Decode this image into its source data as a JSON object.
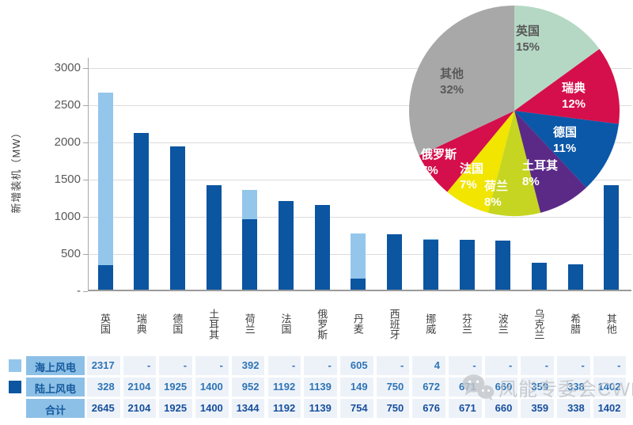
{
  "chart_data": [
    {
      "type": "bar",
      "title": "",
      "ylabel": "新增装机（MW）",
      "ylim": [
        0,
        3000
      ],
      "grid": true,
      "yticks": [
        {
          "label": "3000",
          "value": 3000
        },
        {
          "label": "2500",
          "value": 2500
        },
        {
          "label": "2000",
          "value": 2000
        },
        {
          "label": "1500",
          "value": 1500
        },
        {
          "label": "1000",
          "value": 1000
        },
        {
          "label": "500",
          "value": 500
        },
        {
          "label": "-",
          "value": 0
        }
      ],
      "categories": [
        "英国",
        "瑞典",
        "德国",
        "土耳其",
        "荷兰",
        "法国",
        "俄罗斯",
        "丹麦",
        "西班牙",
        "挪威",
        "芬兰",
        "波兰",
        "乌克兰",
        "希腊",
        "其他"
      ],
      "series": [
        {
          "name": "海上风电",
          "color": "#94c6ec",
          "stack_order": "top",
          "values": [
            2317,
            0,
            0,
            0,
            392,
            0,
            0,
            605,
            0,
            4,
            0,
            0,
            0,
            0,
            0
          ]
        },
        {
          "name": "陆上风电",
          "color": "#0b55a1",
          "stack_order": "bottom",
          "values": [
            328,
            2104,
            1925,
            1400,
            952,
            1192,
            1139,
            149,
            750,
            672,
            671,
            660,
            359,
            338,
            1402
          ]
        }
      ],
      "totals": [
        2645,
        2104,
        1925,
        1400,
        1344,
        1192,
        1139,
        754,
        750,
        676,
        671,
        660,
        359,
        338,
        1402
      ]
    },
    {
      "type": "pie",
      "start_angle_deg": 0,
      "direction": "clockwise",
      "slices": [
        {
          "label": "英国",
          "pct": 15,
          "color": "#b5d8c4",
          "text_color": "#595959"
        },
        {
          "label": "瑞典",
          "pct": 12,
          "color": "#d50f4b",
          "text_color": "#ffffff"
        },
        {
          "label": "德国",
          "pct": 11,
          "color": "#0b57a8",
          "text_color": "#ffffff"
        },
        {
          "label": "土耳其",
          "pct": 8,
          "color": "#5b2a87",
          "text_color": "#ffffff"
        },
        {
          "label": "荷兰",
          "pct": 8,
          "color": "#c5d521",
          "text_color": "#ffffff"
        },
        {
          "label": "法国",
          "pct": 7,
          "color": "#f2e500",
          "text_color": "#ffffff"
        },
        {
          "label": "俄罗斯",
          "pct": 7,
          "color": "#d50f4b",
          "text_color": "#ffffff"
        },
        {
          "label": "其他",
          "pct": 32,
          "color": "#a8a8a8",
          "text_color": "#595959"
        }
      ]
    }
  ],
  "table": {
    "columns": [
      "英国",
      "瑞典",
      "德国",
      "土耳其",
      "荷兰",
      "法国",
      "俄罗斯",
      "丹麦",
      "西班牙",
      "挪威",
      "芬兰",
      "波兰",
      "乌克兰",
      "希腊",
      "其他"
    ],
    "rows": [
      {
        "label": "海上风电",
        "total": false,
        "values": [
          "2317",
          "-",
          "-",
          "-",
          "392",
          "-",
          "-",
          "605",
          "-",
          "4",
          "-",
          "-",
          "-",
          "-",
          "-"
        ]
      },
      {
        "label": "陆上风电",
        "total": false,
        "values": [
          "328",
          "2104",
          "1925",
          "1400",
          "952",
          "1192",
          "1139",
          "149",
          "750",
          "672",
          "671",
          "660",
          "359",
          "338",
          "1402"
        ]
      },
      {
        "label": "合计",
        "total": true,
        "values": [
          "2645",
          "2104",
          "1925",
          "1400",
          "1344",
          "1192",
          "1139",
          "754",
          "750",
          "676",
          "671",
          "660",
          "359",
          "338",
          "1402"
        ]
      }
    ]
  },
  "legend": [
    {
      "name": "海上风电",
      "color": "#94c6ec"
    },
    {
      "name": "陆上风电",
      "color": "#0b55a1"
    }
  ],
  "watermark": {
    "text": "风能专委会CWEA",
    "icon": "wechat-icon",
    "color": "#bfc3c7"
  }
}
